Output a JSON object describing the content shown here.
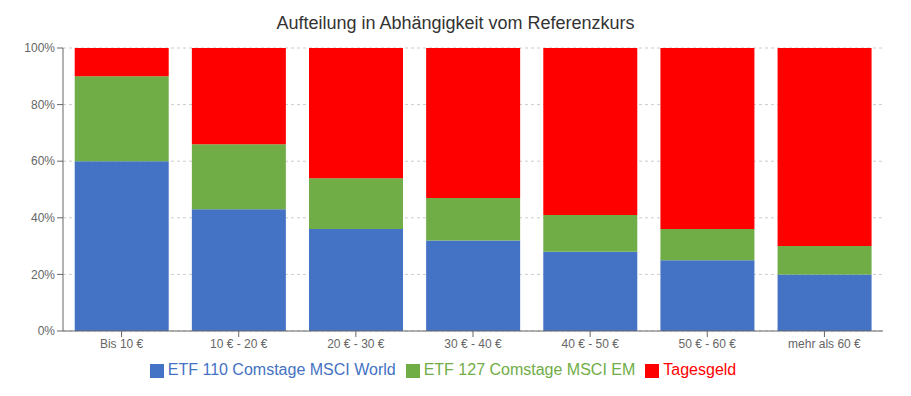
{
  "chart_data": {
    "type": "bar",
    "title": "Aufteilung in Abhängigkeit vom Referenzkurs",
    "categories": [
      "Bis 10 €",
      "10 € - 20 €",
      "20 € - 30 €",
      "30 € - 40 €",
      "40 € - 50 €",
      "50 € - 60 €",
      "mehr als 60 €"
    ],
    "series": [
      {
        "name": "ETF 110 Comstage MSCI World",
        "color": "#4472C4",
        "values": [
          60,
          43,
          36,
          32,
          28,
          25,
          20
        ]
      },
      {
        "name": "ETF 127 Comstage MSCI EM",
        "color": "#70AD47",
        "values": [
          30,
          23,
          18,
          15,
          13,
          11,
          10
        ]
      },
      {
        "name": "Tagesgeld",
        "color": "#FF0000",
        "values": [
          10,
          34,
          46,
          53,
          59,
          64,
          70
        ]
      }
    ],
    "stacked": true,
    "ylim": [
      0,
      100
    ],
    "yticks": [
      {
        "value": 0,
        "label": "0%"
      },
      {
        "value": 20,
        "label": "20%"
      },
      {
        "value": 40,
        "label": "40%"
      },
      {
        "value": 60,
        "label": "60%"
      },
      {
        "value": 80,
        "label": "80%"
      },
      {
        "value": 100,
        "label": "100%"
      }
    ],
    "grid": true,
    "legend": "bottom"
  }
}
